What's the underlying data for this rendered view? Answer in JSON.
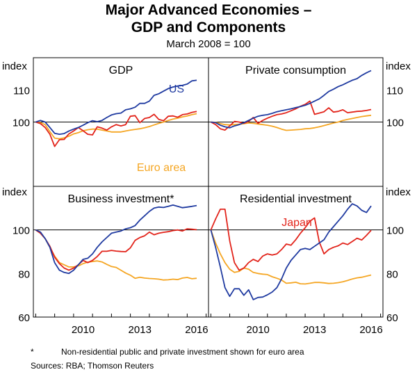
{
  "title_line1": "Major Advanced Economies –",
  "title_line2": "GDP and Components",
  "subtitle": "March 2008 = 100",
  "footnote_marker": "*",
  "footnote": "Non-residential public and private investment shown for euro area",
  "sources": "Sources:  RBA; Thomson Reuters",
  "colors": {
    "US": "#1f3aa0",
    "Euro area": "#f5a623",
    "Japan": "#e2231a"
  },
  "chart_data": [
    {
      "type": "line",
      "panel": "top-left",
      "title": "GDP",
      "ylabel": "index",
      "ylim": [
        80,
        120
      ],
      "yticks": [
        100,
        110
      ],
      "x_start": 2008.0,
      "x_step": 0.25,
      "annotations": [
        {
          "text": "US",
          "series": "US"
        },
        {
          "text": "Euro area",
          "series": "Euro area"
        }
      ],
      "series": [
        {
          "name": "US",
          "values": [
            100,
            100.5,
            100,
            98.3,
            96.5,
            96.2,
            96.4,
            97.2,
            97.8,
            98.3,
            99,
            99.8,
            100.4,
            100.1,
            100.5,
            101.4,
            102.2,
            102.6,
            102.8,
            103.8,
            104.1,
            104.6,
            105.8,
            105.8,
            106.5,
            108.3,
            108.8,
            109.6,
            110.4,
            110.9,
            111.2,
            111.4,
            111.8,
            112.8,
            113
          ]
        },
        {
          "name": "Euro area",
          "values": [
            100,
            99.8,
            99.2,
            97,
            95,
            94.8,
            95.1,
            95.6,
            96.3,
            96.7,
            97.3,
            97.6,
            97.8,
            97.8,
            97.5,
            97.2,
            96.9,
            96.9,
            96.9,
            97.2,
            97.5,
            97.7,
            97.9,
            98.2,
            98.6,
            99.1,
            99.6,
            100,
            100.5,
            100.9,
            101.2,
            101.6,
            101.9,
            102.3,
            102.6
          ]
        },
        {
          "name": "Japan",
          "values": [
            100,
            99.5,
            98.3,
            96.2,
            92.4,
            94.5,
            94.6,
            96.3,
            97.2,
            98.3,
            97.3,
            96.2,
            96,
            98.5,
            98.1,
            97.5,
            98.5,
            99.2,
            98.8,
            99.2,
            101.8,
            102,
            99.8,
            101.1,
            101.4,
            102.4,
            100.8,
            100.4,
            101.8,
            101.9,
            101.5,
            102.3,
            102.5,
            103,
            103.3
          ]
        }
      ]
    },
    {
      "type": "line",
      "panel": "top-right",
      "title": "Private consumption",
      "ylabel": "index",
      "ylim": [
        80,
        120
      ],
      "yticks": [
        100,
        110
      ],
      "x_start": 2008.0,
      "x_step": 0.25,
      "series": [
        {
          "name": "US",
          "values": [
            100,
            99.8,
            99,
            98.5,
            98.2,
            98.8,
            99.2,
            99.8,
            100.5,
            101.2,
            101.8,
            102.1,
            102.3,
            102.7,
            103.2,
            103.5,
            103.8,
            104.1,
            104.5,
            104.8,
            105.2,
            105.8,
            106.5,
            107.2,
            108.3,
            109.5,
            110.2,
            111,
            111.6,
            112.3,
            113,
            113.5,
            114.5,
            115.3,
            116
          ]
        },
        {
          "name": "Euro area",
          "values": [
            100,
            99.9,
            99.5,
            99.2,
            99.1,
            99.2,
            99.3,
            99.5,
            99.7,
            99.6,
            99.4,
            99.2,
            99,
            98.7,
            98.3,
            97.8,
            97.4,
            97.5,
            97.6,
            97.7,
            97.9,
            98,
            98.2,
            98.5,
            98.9,
            99.3,
            99.7,
            100,
            100.5,
            100.8,
            101.1,
            101.4,
            101.7,
            101.9,
            102.1
          ]
        },
        {
          "name": "Japan",
          "values": [
            100,
            99.2,
            97.9,
            97.5,
            98.8,
            100.2,
            100,
            99.6,
            100.2,
            101.4,
            99.6,
            100.5,
            101.2,
            101.8,
            102.3,
            102.5,
            102.9,
            103.5,
            104.1,
            104.9,
            105.5,
            106.5,
            102.4,
            102.8,
            103.2,
            104.4,
            103.1,
            103.3,
            103.8,
            102.9,
            103.1,
            103.3,
            103.4,
            103.6,
            103.9
          ]
        }
      ]
    },
    {
      "type": "line",
      "panel": "bottom-left",
      "title": "Business investment*",
      "ylabel": "index",
      "ylim": [
        60,
        120
      ],
      "yticks": [
        60,
        80,
        100
      ],
      "x_start": 2008.0,
      "x_step": 0.25,
      "xticks": [
        2010,
        2013,
        2016
      ],
      "series": [
        {
          "name": "US",
          "values": [
            100,
            99,
            96,
            92,
            85,
            81.5,
            80.5,
            80,
            81.5,
            84,
            86.5,
            87,
            89,
            92,
            94.5,
            96.5,
            98.5,
            99,
            99.5,
            100.5,
            101,
            102,
            104.5,
            106.5,
            108.5,
            110,
            110.5,
            110.3,
            110.8,
            111.4,
            110.8,
            110.2,
            110.5,
            110.8,
            111.2
          ]
        },
        {
          "name": "Euro area",
          "values": [
            100,
            98.5,
            96,
            92,
            88,
            85,
            84,
            83,
            83,
            83.5,
            84.5,
            85.2,
            85.5,
            85.8,
            85.3,
            84.2,
            83.2,
            82.8,
            81.5,
            80.2,
            79.2,
            77.8,
            78.3,
            77.9,
            77.7,
            77.6,
            77.4,
            77,
            77.1,
            77.4,
            77.2,
            77.9,
            78.2,
            77.6,
            77.8
          ]
        },
        {
          "name": "Japan",
          "values": [
            100,
            98.5,
            96,
            92.5,
            87.5,
            84.5,
            82.5,
            81.5,
            82.5,
            84,
            86,
            85,
            86,
            87.8,
            90.2,
            90.2,
            90.6,
            90.3,
            90.1,
            90,
            91.8,
            95.2,
            96.5,
            97.3,
            99,
            97.8,
            98.5,
            98.9,
            99.2,
            99.7,
            100,
            99.5,
            100.5,
            100.3,
            100.1
          ]
        }
      ]
    },
    {
      "type": "line",
      "panel": "bottom-right",
      "title": "Residential investment",
      "ylabel": "index",
      "ylim": [
        60,
        120
      ],
      "yticks": [
        60,
        80,
        100
      ],
      "x_start": 2008.0,
      "x_step": 0.25,
      "xticks": [
        2010,
        2013,
        2016
      ],
      "annotations": [
        {
          "text": "Japan",
          "series": "Japan"
        }
      ],
      "series": [
        {
          "name": "US",
          "values": [
            100,
            92,
            83,
            73.5,
            69.5,
            73,
            73,
            70,
            72.5,
            68,
            69,
            69.2,
            70.2,
            71.5,
            73.5,
            77.5,
            82.5,
            86,
            88.5,
            91,
            91.5,
            91,
            92.5,
            94,
            95.5,
            99,
            101.5,
            104,
            106.5,
            109.5,
            112,
            111,
            109,
            108,
            111
          ]
        },
        {
          "name": "Euro area",
          "values": [
            100,
            94,
            89,
            85,
            82,
            80.5,
            81,
            82.5,
            82,
            80.5,
            80,
            79.7,
            79.5,
            78.5,
            77.8,
            77,
            75.5,
            75.7,
            76,
            75.3,
            75.2,
            75.5,
            75.9,
            75.9,
            75.7,
            75.4,
            75.5,
            75.8,
            76.2,
            76.8,
            77.5,
            78,
            78.3,
            78.8,
            79.3
          ]
        },
        {
          "name": "Japan",
          "values": [
            100,
            105,
            109.5,
            109.5,
            95,
            85,
            81.5,
            82.5,
            85,
            86.5,
            85.5,
            88,
            89,
            88.5,
            89,
            91,
            93.5,
            93,
            95.5,
            98.5,
            101,
            104,
            105.5,
            94.5,
            89,
            91,
            92,
            92.7,
            94,
            93.3,
            94.7,
            96.2,
            95.4,
            97.5,
            99.8
          ]
        }
      ]
    }
  ]
}
